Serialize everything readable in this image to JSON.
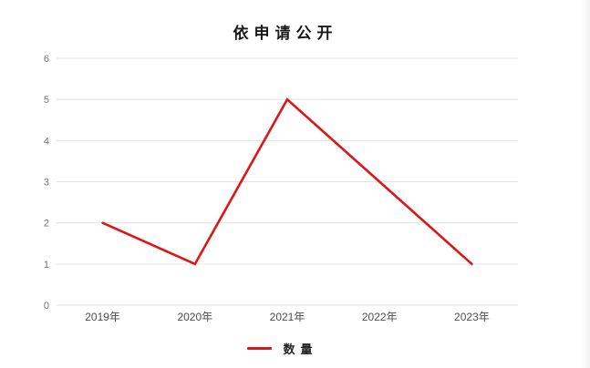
{
  "title": "依申请公开",
  "legend": {
    "label": "数量"
  },
  "colors": {
    "line": "#e01515",
    "grid": "#e2e2e2",
    "y_axis_text": "#737373",
    "x_axis_text": "#4d4d4d",
    "title_text": "#1a1a1a"
  },
  "chart_data": {
    "type": "line",
    "title": "依申请公开",
    "categories": [
      "2019年",
      "2020年",
      "2021年",
      "2022年",
      "2023年"
    ],
    "series": [
      {
        "name": "数量",
        "values": [
          2,
          1,
          5,
          3,
          1
        ],
        "color": "#e01515"
      }
    ],
    "xlabel": "",
    "ylabel": "",
    "ylim": [
      0,
      6
    ],
    "yticks": [
      0,
      1,
      2,
      3,
      4,
      5,
      6
    ],
    "grid": true,
    "markers": false,
    "legend_position": "bottom"
  }
}
